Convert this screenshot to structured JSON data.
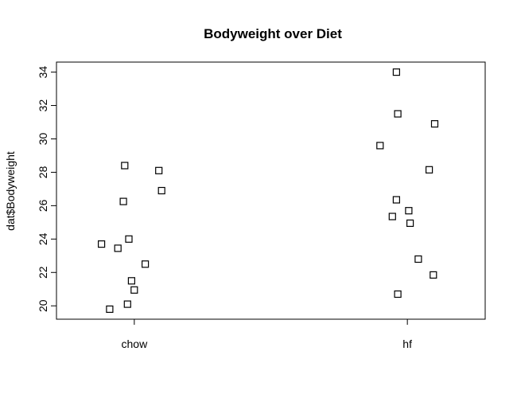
{
  "chart_data": {
    "type": "scatter",
    "title": "Bodyweight over Diet",
    "xlabel": "",
    "ylabel": "dat$Bodyweight",
    "categories": [
      "chow",
      "hf"
    ],
    "ylim": [
      19.2,
      34.6
    ],
    "yticks": [
      "20",
      "22",
      "24",
      "26",
      "28",
      "30",
      "32",
      "34"
    ],
    "grid": false,
    "legend": "none",
    "marker": "open-square",
    "colors": {
      "stroke": "#000000",
      "background": "#ffffff"
    },
    "points": [
      {
        "category": "chow",
        "jitter": -0.12,
        "value": 23.7
      },
      {
        "category": "chow",
        "jitter": -0.06,
        "value": 23.45
      },
      {
        "category": "chow",
        "jitter": -0.04,
        "value": 26.25
      },
      {
        "category": "chow",
        "jitter": -0.035,
        "value": 28.4
      },
      {
        "category": "chow",
        "jitter": -0.02,
        "value": 24.0
      },
      {
        "category": "chow",
        "jitter": -0.025,
        "value": 20.1
      },
      {
        "category": "chow",
        "jitter": -0.09,
        "value": 19.8
      },
      {
        "category": "chow",
        "jitter": -0.01,
        "value": 21.5
      },
      {
        "category": "chow",
        "jitter": 0.0,
        "value": 20.95
      },
      {
        "category": "chow",
        "jitter": 0.04,
        "value": 22.5
      },
      {
        "category": "chow",
        "jitter": 0.09,
        "value": 28.1
      },
      {
        "category": "chow",
        "jitter": 0.1,
        "value": 26.9
      },
      {
        "category": "hf",
        "jitter": -0.1,
        "value": 29.6
      },
      {
        "category": "hf",
        "jitter": -0.055,
        "value": 25.35
      },
      {
        "category": "hf",
        "jitter": -0.04,
        "value": 34.0
      },
      {
        "category": "hf",
        "jitter": -0.04,
        "value": 26.35
      },
      {
        "category": "hf",
        "jitter": -0.035,
        "value": 31.5
      },
      {
        "category": "hf",
        "jitter": -0.035,
        "value": 20.7
      },
      {
        "category": "hf",
        "jitter": 0.005,
        "value": 25.7
      },
      {
        "category": "hf",
        "jitter": 0.01,
        "value": 24.95
      },
      {
        "category": "hf",
        "jitter": 0.04,
        "value": 22.8
      },
      {
        "category": "hf",
        "jitter": 0.08,
        "value": 28.15
      },
      {
        "category": "hf",
        "jitter": 0.095,
        "value": 21.85
      },
      {
        "category": "hf",
        "jitter": 0.1,
        "value": 30.9
      }
    ]
  }
}
